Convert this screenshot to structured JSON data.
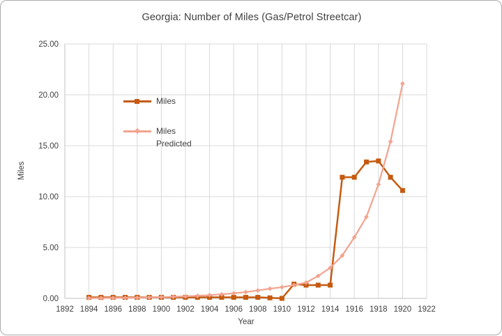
{
  "window": {
    "background": "#ffffff",
    "border_color": "#ababab"
  },
  "colors": {
    "miles_series": "#C55A11",
    "predicted_series": "#F2A490",
    "gridline": "#D9D9D9",
    "axis_line": "#C0C0C0",
    "text": "#404040"
  },
  "chart_data": {
    "type": "line",
    "title": "Georgia: Number of Miles (Gas/Petrol Streetcar)",
    "xlabel": "Year",
    "ylabel": "Miles",
    "xlim": [
      1892,
      1922
    ],
    "ylim": [
      0,
      25
    ],
    "grid": true,
    "legend_position": "inside-upper-left",
    "x_ticks": [
      1892,
      1894,
      1896,
      1898,
      1900,
      1902,
      1904,
      1906,
      1908,
      1910,
      1912,
      1914,
      1916,
      1918,
      1920,
      1922
    ],
    "y_ticks": [
      {
        "value": 0,
        "label": "0.00"
      },
      {
        "value": 5,
        "label": "5.00"
      },
      {
        "value": 10,
        "label": "10.00"
      },
      {
        "value": 15,
        "label": "15.00"
      },
      {
        "value": 20,
        "label": "20.00"
      },
      {
        "value": 25,
        "label": "25.00"
      }
    ],
    "x": [
      1894,
      1895,
      1896,
      1897,
      1898,
      1899,
      1900,
      1901,
      1902,
      1903,
      1904,
      1905,
      1906,
      1907,
      1908,
      1909,
      1910,
      1911,
      1912,
      1913,
      1914,
      1915,
      1916,
      1917,
      1918,
      1919,
      1920
    ],
    "series": [
      {
        "name": "Miles",
        "color": "#C55A11",
        "marker": "square",
        "line_width": 2.5,
        "values": [
          0.1,
          0.1,
          0.1,
          0.1,
          0.1,
          0.1,
          0.1,
          0.1,
          0.1,
          0.1,
          0.1,
          0.1,
          0.1,
          0.1,
          0.1,
          0.05,
          0,
          1.4,
          1.3,
          1.3,
          1.3,
          11.9,
          11.9,
          13.4,
          13.5,
          11.9,
          10.6
        ]
      },
      {
        "name": "Miles Predicted",
        "color": "#F2A490",
        "marker": "diamond",
        "line_width": 2.25,
        "values": [
          0.02,
          0.03,
          0.04,
          0.05,
          0.07,
          0.09,
          0.12,
          0.16,
          0.2,
          0.25,
          0.32,
          0.4,
          0.5,
          0.62,
          0.78,
          0.95,
          1.1,
          1.3,
          1.55,
          2.2,
          3.0,
          4.2,
          6.0,
          8.0,
          11.2,
          15.4,
          21.1
        ]
      }
    ]
  }
}
